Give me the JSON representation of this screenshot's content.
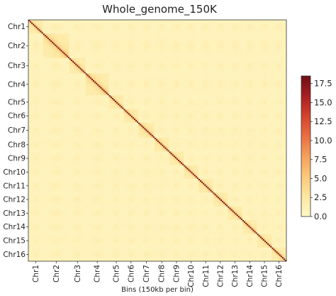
{
  "chart_data": {
    "type": "heatmap",
    "title": "Whole_genome_150K",
    "xlabel": "Bins (150kb per bin)",
    "ylabel": "",
    "chromosomes": [
      {
        "name": "Chr1",
        "size_bins": 10
      },
      {
        "name": "Chr2",
        "size_bins": 18
      },
      {
        "name": "Chr3",
        "size_bins": 11
      },
      {
        "name": "Chr4",
        "size_bins": 16
      },
      {
        "name": "Chr5",
        "size_bins": 10
      },
      {
        "name": "Chr6",
        "size_bins": 10
      },
      {
        "name": "Chr7",
        "size_bins": 11
      },
      {
        "name": "Chr8",
        "size_bins": 10
      },
      {
        "name": "Chr9",
        "size_bins": 10
      },
      {
        "name": "Chr10",
        "size_bins": 10
      },
      {
        "name": "Chr11",
        "size_bins": 10
      },
      {
        "name": "Chr12",
        "size_bins": 10
      },
      {
        "name": "Chr13",
        "size_bins": 10
      },
      {
        "name": "Chr14",
        "size_bins": 10
      },
      {
        "name": "Chr15",
        "size_bins": 10
      },
      {
        "name": "Chr16",
        "size_bins": 10
      }
    ],
    "colorbar": {
      "min": 0,
      "max": 18.5,
      "ticks": [
        0.0,
        2.5,
        5.0,
        7.5,
        10.0,
        12.5,
        15.0,
        17.5
      ],
      "tick_labels": [
        "0.0",
        "2.5",
        "5.0",
        "7.5",
        "10.0",
        "12.5",
        "15.0",
        "17.5"
      ],
      "colors": [
        "#fff8c8",
        "#fde7a0",
        "#fbc87a",
        "#f5a05c",
        "#e96f42",
        "#d4422e",
        "#a91e22",
        "#6e0f16"
      ]
    },
    "grid": false,
    "legend": "colorbar-right",
    "values_summary": {
      "diagonal": 18.0,
      "intra_chromosome_near": 6.0,
      "intra_chromosome_far": 1.8,
      "inter_chromosome_centromere": 1.6,
      "inter_chromosome_background": 0.8
    }
  }
}
